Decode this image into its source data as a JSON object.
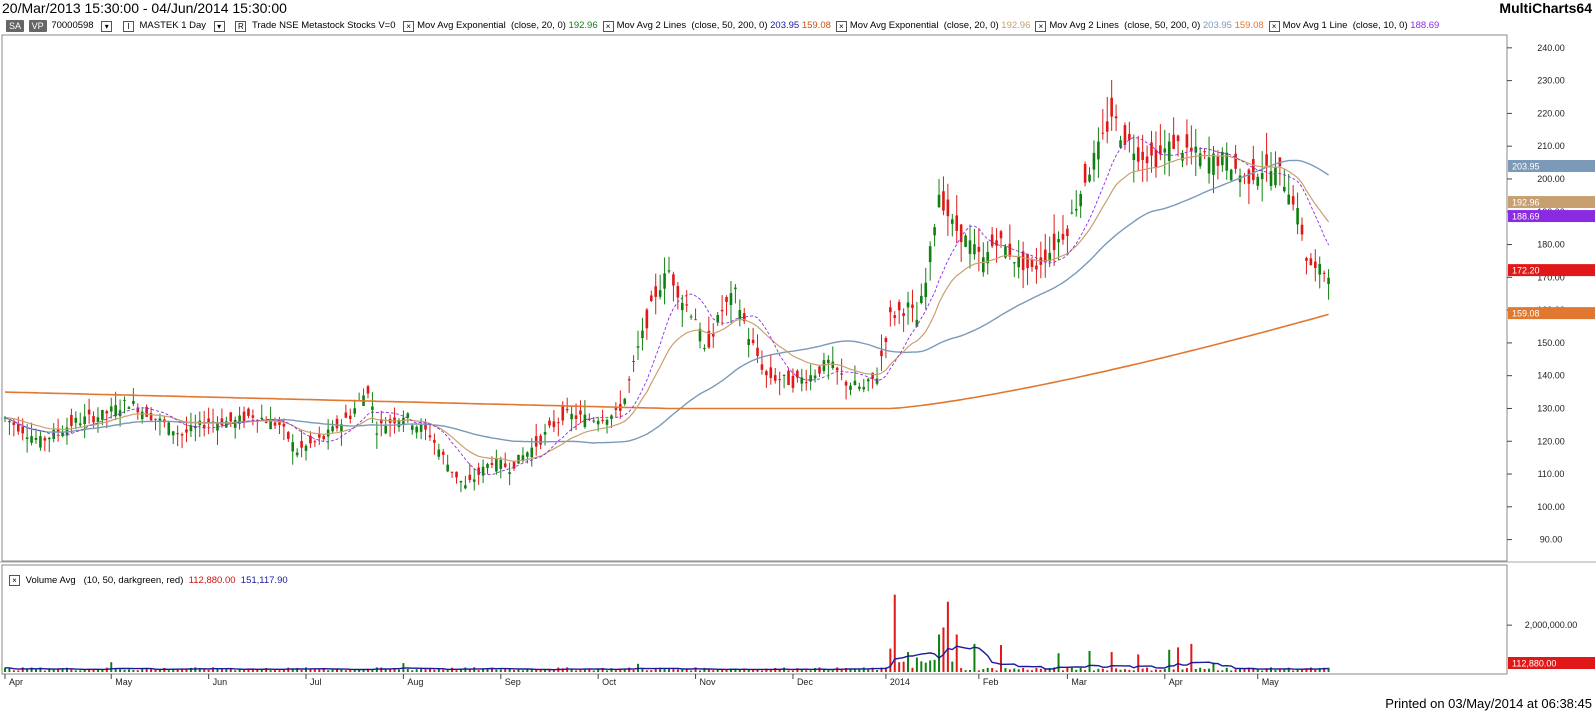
{
  "header": {
    "date_range": "20/Mar/2013 15:30:00 - 04/Jun/2014 15:30:00",
    "app_name": "MultiCharts64"
  },
  "legend": {
    "badge_sa": "SA",
    "badge_vp": "VP",
    "symbol_id": "70000598",
    "symbol": "MASTEK 1 Day",
    "desc": "Trade NSE Metastock Stocks V=0",
    "indicators": [
      {
        "name": "Mov Avg Exponential",
        "params": "(close, 20, 0)",
        "values": [
          {
            "v": "192.96",
            "color": "#1a7a1a"
          }
        ]
      },
      {
        "name": "Mov Avg 2 Lines",
        "params": "(close, 50, 200, 0)",
        "values": [
          {
            "v": "203.95",
            "color": "#1a1aa0"
          },
          {
            "v": "159.08",
            "color": "#d05010"
          }
        ]
      },
      {
        "name": "Mov Avg Exponential",
        "params": "(close, 20, 0)",
        "values": [
          {
            "v": "192.96",
            "color": "#c8a070"
          }
        ]
      },
      {
        "name": "Mov Avg 2 Lines",
        "params": "(close, 50, 200, 0)",
        "values": [
          {
            "v": "203.95",
            "color": "#7b9ab8"
          },
          {
            "v": "159.08",
            "color": "#e07830"
          }
        ]
      },
      {
        "name": "Mov Avg 1 Line",
        "params": "(close, 10, 0)",
        "values": [
          {
            "v": "188.69",
            "color": "#8a2be2"
          }
        ]
      }
    ]
  },
  "volume_legend": {
    "name": "Volume Avg",
    "params": "(10, 50, darkgreen, red)",
    "value1": "112,880.00",
    "value2": "151,117.90"
  },
  "footer": "Printed on 03/May/2014 at 06:38:45",
  "colors": {
    "up": "#108010",
    "down": "#e01818",
    "ema20": "#c8a070",
    "sma50": "#7b9ab8",
    "sma200": "#e07830",
    "ma10": "#8a2be2",
    "vol_avg": "#1a1aa0",
    "axis": "#444444"
  },
  "chart_data": {
    "type": "line",
    "price_axis": {
      "ticks": [
        "240.00",
        "230.00",
        "220.00",
        "210.00",
        "200.00",
        "190.00",
        "180.00",
        "170.00",
        "160.00",
        "150.00",
        "140.00",
        "130.00",
        "120.00",
        "110.00",
        "100.00",
        "90.00"
      ],
      "range": [
        85,
        243
      ]
    },
    "price_labels": [
      {
        "text": "203.95",
        "value": 203.95,
        "color": "#7b9ab8"
      },
      {
        "text": "192.96",
        "value": 192.96,
        "color": "#c8a070"
      },
      {
        "text": "188.69",
        "value": 188.69,
        "color": "#8a2be2"
      },
      {
        "text": "172.20",
        "value": 172.2,
        "color": "#e01818"
      },
      {
        "text": "159.08",
        "value": 159.08,
        "color": "#e07830"
      }
    ],
    "x_axis": {
      "labels": [
        "Apr",
        "May",
        "Jun",
        "Jul",
        "Aug",
        "Sep",
        "Oct",
        "Nov",
        "Dec",
        "2014",
        "Feb",
        "Mar",
        "Apr",
        "May"
      ]
    },
    "close_anchors": [
      [
        0,
        127
      ],
      [
        8,
        120
      ],
      [
        16,
        126
      ],
      [
        22,
        128
      ],
      [
        28,
        132
      ],
      [
        34,
        127
      ],
      [
        40,
        122
      ],
      [
        46,
        126
      ],
      [
        52,
        126
      ],
      [
        56,
        128
      ],
      [
        62,
        125
      ],
      [
        66,
        117
      ],
      [
        72,
        121
      ],
      [
        78,
        128
      ],
      [
        82,
        136
      ],
      [
        84,
        124
      ],
      [
        90,
        128
      ],
      [
        96,
        122
      ],
      [
        100,
        113
      ],
      [
        104,
        106
      ],
      [
        110,
        114
      ],
      [
        114,
        112
      ],
      [
        120,
        119
      ],
      [
        126,
        128
      ],
      [
        132,
        127
      ],
      [
        138,
        128
      ],
      [
        140,
        133
      ],
      [
        143,
        148
      ],
      [
        147,
        165
      ],
      [
        150,
        172
      ],
      [
        153,
        163
      ],
      [
        156,
        158
      ],
      [
        158,
        147
      ],
      [
        162,
        160
      ],
      [
        165,
        165
      ],
      [
        168,
        152
      ],
      [
        172,
        140
      ],
      [
        178,
        138
      ],
      [
        182,
        140
      ],
      [
        186,
        144
      ],
      [
        190,
        138
      ],
      [
        194,
        136
      ],
      [
        197,
        140
      ],
      [
        200,
        158
      ],
      [
        204,
        161
      ],
      [
        206,
        157
      ],
      [
        208,
        168
      ],
      [
        211,
        196
      ],
      [
        214,
        186
      ],
      [
        218,
        180
      ],
      [
        221,
        175
      ],
      [
        224,
        182
      ],
      [
        228,
        176
      ],
      [
        232,
        172
      ],
      [
        236,
        178
      ],
      [
        240,
        185
      ],
      [
        244,
        200
      ],
      [
        248,
        212
      ],
      [
        250,
        220
      ],
      [
        252,
        214
      ],
      [
        256,
        208
      ],
      [
        260,
        206
      ],
      [
        264,
        211
      ],
      [
        268,
        208
      ],
      [
        272,
        206
      ],
      [
        276,
        206
      ],
      [
        280,
        200
      ],
      [
        284,
        203
      ],
      [
        288,
        202
      ],
      [
        291,
        194
      ],
      [
        293,
        184
      ],
      [
        294,
        176
      ],
      [
        296,
        172
      ]
    ],
    "sma200": {
      "start": 135,
      "mid": 130,
      "end": 159.08
    },
    "sma50_end": 203.95,
    "ema20_end": 192.96,
    "ma10_end": 188.69,
    "volume_axis": {
      "ticks": [
        "2,000,000.00"
      ],
      "range": [
        0,
        3500000
      ]
    },
    "volume_label": {
      "text": "112,880.00"
    },
    "volume_spikes": [
      [
        24,
        420000
      ],
      [
        90,
        380000
      ],
      [
        143,
        350000
      ],
      [
        200,
        1000000
      ],
      [
        201,
        3300000
      ],
      [
        204,
        850000
      ],
      [
        211,
        1600000
      ],
      [
        212,
        1900000
      ],
      [
        213,
        3000000
      ],
      [
        215,
        1600000
      ],
      [
        219,
        1200000
      ],
      [
        225,
        1150000
      ],
      [
        238,
        800000
      ],
      [
        245,
        900000
      ],
      [
        250,
        850000
      ],
      [
        256,
        750000
      ],
      [
        263,
        950000
      ],
      [
        265,
        1050000
      ],
      [
        268,
        1200000
      ],
      [
        273,
        400000
      ]
    ]
  }
}
